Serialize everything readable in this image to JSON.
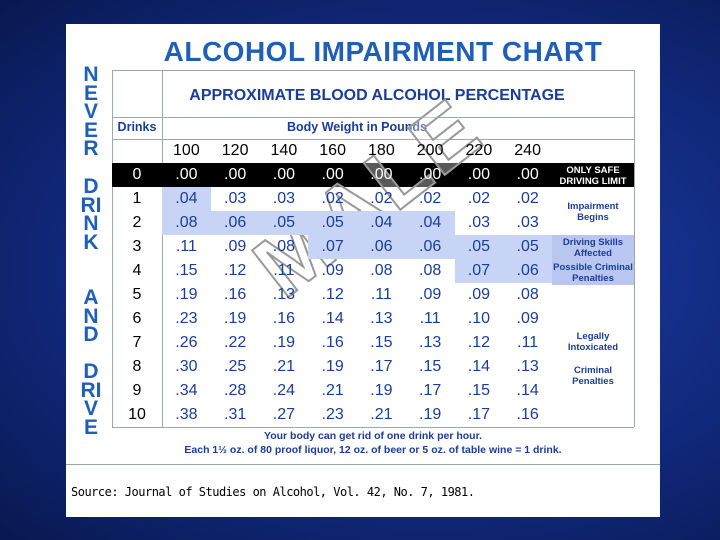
{
  "title": "ALCOHOL IMPAIRMENT CHART",
  "side_text": [
    "NEVER",
    "DRINK",
    "AND",
    "DRIVE"
  ],
  "subtitle": "APPROXIMATE BLOOD ALCOHOL PERCENTAGE",
  "table": {
    "row_header": "Drinks",
    "column_group": "Body Weight in Pounds",
    "weights": [
      "100",
      "120",
      "140",
      "160",
      "180",
      "200",
      "220",
      "240"
    ],
    "rows": [
      {
        "drinks": "0",
        "values": [
          ".00",
          ".00",
          ".00",
          ".00",
          ".00",
          ".00",
          ".00",
          ".00"
        ]
      },
      {
        "drinks": "1",
        "values": [
          ".04",
          ".03",
          ".03",
          ".02",
          ".02",
          ".02",
          ".02",
          ".02"
        ]
      },
      {
        "drinks": "2",
        "values": [
          ".08",
          ".06",
          ".05",
          ".05",
          ".04",
          ".04",
          ".03",
          ".03"
        ]
      },
      {
        "drinks": "3",
        "values": [
          ".11",
          ".09",
          ".08",
          ".07",
          ".06",
          ".06",
          ".05",
          ".05"
        ]
      },
      {
        "drinks": "4",
        "values": [
          ".15",
          ".12",
          ".11",
          ".09",
          ".08",
          ".08",
          ".07",
          ".06"
        ]
      },
      {
        "drinks": "5",
        "values": [
          ".19",
          ".16",
          ".13",
          ".12",
          ".11",
          ".09",
          ".09",
          ".08"
        ]
      },
      {
        "drinks": "6",
        "values": [
          ".23",
          ".19",
          ".16",
          ".14",
          ".13",
          ".11",
          ".10",
          ".09"
        ]
      },
      {
        "drinks": "7",
        "values": [
          ".26",
          ".22",
          ".19",
          ".16",
          ".15",
          ".13",
          ".12",
          ".11"
        ]
      },
      {
        "drinks": "8",
        "values": [
          ".30",
          ".25",
          ".21",
          ".19",
          ".17",
          ".15",
          ".14",
          ".13"
        ]
      },
      {
        "drinks": "9",
        "values": [
          ".34",
          ".28",
          ".24",
          ".21",
          ".19",
          ".17",
          ".15",
          ".14"
        ]
      },
      {
        "drinks": "10",
        "values": [
          ".38",
          ".31",
          ".27",
          ".23",
          ".21",
          ".19",
          ".17",
          ".16"
        ]
      }
    ]
  },
  "zones": [
    "ONLY SAFE DRIVING LIMIT",
    "Impairment Begins",
    "Driving Skills Affected",
    "Possible Criminal Penalties",
    "Legally Intoxicated",
    "Criminal Penalties"
  ],
  "watermark": "MALE",
  "notes": [
    "Your body can get rid of one drink per hour.",
    "Each 1½ oz. of 80 proof liquor, 12 oz. of beer or 5 oz. of table wine = 1 drink."
  ],
  "source": "Source: Journal of Studies on Alcohol, Vol. 42, No. 7, 1981."
}
